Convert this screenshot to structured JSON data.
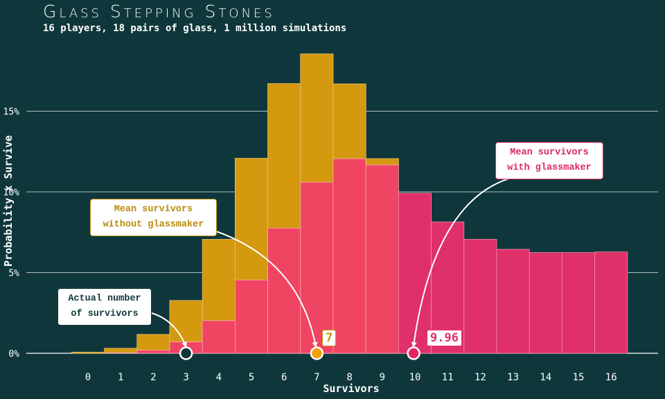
{
  "header": {
    "title": "Glass Stepping Stones",
    "subtitle": "16 players, 18 pairs of glass, 1 million simulations"
  },
  "annotations": {
    "actual": "Actual number\nof survivors",
    "without": "Mean survivors\nwithout glassmaker",
    "with": "Mean survivors\nwith glassmaker",
    "mean_without_label": "7",
    "mean_with_label": "9.96"
  },
  "colors": {
    "background": "#0f373b",
    "without_glassmaker": "#d4990f",
    "with_glassmaker": "#e0306a",
    "overlap": "#f04562",
    "marker_without": "#f2a20c",
    "marker_with": "#e8235f",
    "marker_actual": "#0f373b"
  },
  "chart_data": {
    "type": "bar",
    "title": "Glass Stepping Stones",
    "subtitle": "16 players, 18 pairs of glass, 1 million simulations",
    "xlabel": "Survivors",
    "ylabel": "Probability x Survive",
    "categories": [
      0,
      1,
      2,
      3,
      4,
      5,
      6,
      7,
      8,
      9,
      10,
      11,
      12,
      13,
      14,
      15,
      16
    ],
    "yticks": [
      0,
      5,
      10,
      15
    ],
    "ytick_labels": [
      "0%",
      "5%",
      "10%",
      "15%"
    ],
    "ylim": [
      0,
      19
    ],
    "grid": "horizontal",
    "series": [
      {
        "name": "without glassmaker",
        "values": [
          0.07,
          0.31,
          1.17,
          3.27,
          7.06,
          12.08,
          16.71,
          18.55,
          16.69,
          12.06,
          0,
          0,
          0,
          0,
          0,
          0,
          0
        ]
      },
      {
        "name": "with glassmaker",
        "values": [
          0,
          0.03,
          0.19,
          0.7,
          2.02,
          4.54,
          7.75,
          10.6,
          12.05,
          11.67,
          9.92,
          8.14,
          7.06,
          6.44,
          6.24,
          6.24,
          6.28
        ]
      }
    ],
    "markers": [
      {
        "name": "actual number of survivors",
        "x": 3
      },
      {
        "name": "mean survivors without glassmaker",
        "x": 7,
        "label": "7"
      },
      {
        "name": "mean survivors with glassmaker",
        "x": 9.96,
        "label": "9.96"
      }
    ]
  }
}
